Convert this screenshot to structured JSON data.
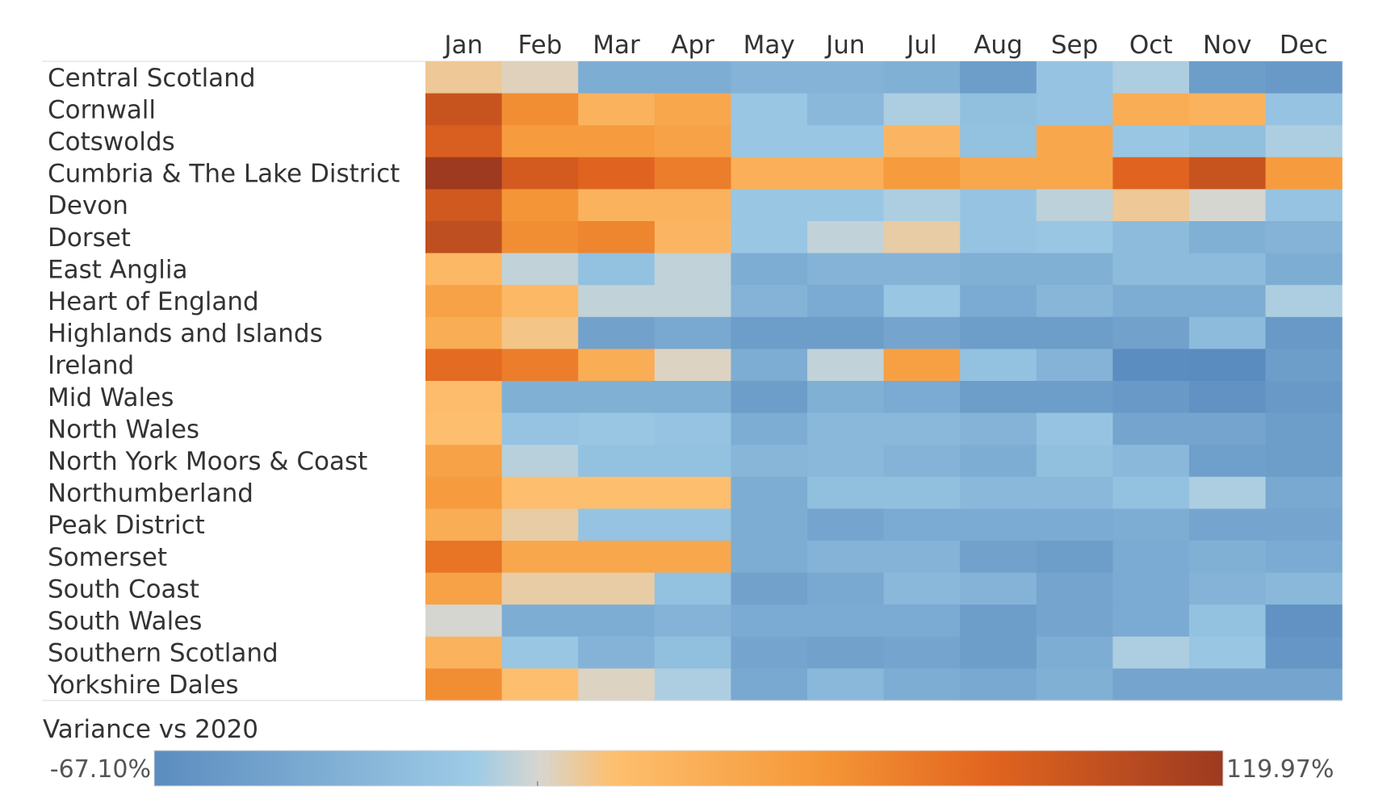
{
  "chart_data": {
    "type": "heatmap",
    "columns": [
      "Jan",
      "Feb",
      "Mar",
      "Apr",
      "May",
      "Jun",
      "Jul",
      "Aug",
      "Sep",
      "Oct",
      "Nov",
      "Dec"
    ],
    "rows": [
      "Central Scotland",
      "Cornwall",
      "Cotswolds",
      "Cumbria & The Lake District",
      "Devon",
      "Dorset",
      "East Anglia",
      "Heart of England",
      "Highlands and Islands",
      "Ireland",
      "Mid Wales",
      "North Wales",
      "North York Moors & Coast",
      "Northumberland",
      "Peak District",
      "Somerset",
      "South Coast",
      "South Wales",
      "Southern Scotland",
      "Yorkshire Dales"
    ],
    "values": [
      [
        8,
        3,
        -38,
        -38,
        -32,
        -32,
        -35,
        -52,
        -18,
        -8,
        -52,
        -55
      ],
      [
        95,
        55,
        25,
        35,
        -15,
        -28,
        -8,
        -22,
        -18,
        30,
        25,
        -18
      ],
      [
        85,
        45,
        45,
        40,
        -15,
        -15,
        22,
        -20,
        35,
        -15,
        -22,
        -8
      ],
      [
        119.97,
        88,
        80,
        65,
        28,
        28,
        45,
        35,
        35,
        80,
        95,
        45
      ],
      [
        90,
        50,
        25,
        25,
        -15,
        -15,
        -8,
        -18,
        -5,
        8,
        0,
        -18
      ],
      [
        100,
        55,
        60,
        22,
        -15,
        -4,
        6,
        -18,
        -15,
        -25,
        -35,
        -32
      ],
      [
        20,
        -4,
        -20,
        -4,
        -38,
        -32,
        -32,
        -35,
        -35,
        -25,
        -25,
        -38
      ],
      [
        40,
        20,
        -4,
        -4,
        -32,
        -40,
        -15,
        -40,
        -30,
        -38,
        -38,
        -8
      ],
      [
        30,
        10,
        -48,
        -42,
        -52,
        -52,
        -45,
        -52,
        -52,
        -48,
        -25,
        -55
      ],
      [
        75,
        65,
        30,
        2,
        -38,
        -4,
        42,
        -20,
        -32,
        -66,
        -67.1,
        -52
      ],
      [
        16,
        -35,
        -35,
        -35,
        -52,
        -35,
        -40,
        -52,
        -52,
        -55,
        -62,
        -55
      ],
      [
        14,
        -18,
        -15,
        -18,
        -38,
        -28,
        -28,
        -32,
        -18,
        -45,
        -45,
        -52
      ],
      [
        40,
        -6,
        -20,
        -20,
        -30,
        -28,
        -32,
        -38,
        -22,
        -28,
        -50,
        -52
      ],
      [
        45,
        14,
        14,
        14,
        -38,
        -22,
        -22,
        -28,
        -28,
        -20,
        -8,
        -42
      ],
      [
        30,
        6,
        -18,
        -18,
        -38,
        -45,
        -40,
        -40,
        -40,
        -38,
        -45,
        -45
      ],
      [
        70,
        35,
        35,
        35,
        -38,
        -32,
        -32,
        -48,
        -52,
        -40,
        -35,
        -40
      ],
      [
        40,
        6,
        6,
        -20,
        -48,
        -42,
        -28,
        -32,
        -45,
        -40,
        -32,
        -28
      ],
      [
        0,
        -38,
        -38,
        -32,
        -40,
        -40,
        -40,
        -52,
        -45,
        -40,
        -20,
        -62
      ],
      [
        25,
        -15,
        -32,
        -22,
        -45,
        -48,
        -45,
        -52,
        -38,
        -8,
        -15,
        -58
      ],
      [
        55,
        14,
        2,
        -8,
        -42,
        -28,
        -38,
        -42,
        -35,
        -45,
        -45,
        -45
      ]
    ],
    "legend": {
      "title": "Variance vs 2020",
      "min_label": "-67.10%",
      "max_label": "119.97%",
      "min": -67.1,
      "max": 119.97,
      "placement": "bottom"
    },
    "colors": {
      "low": "#5b8cbf",
      "low_mid": "#9ecbe6",
      "mid": "#d7d6cf",
      "high_mid": "#fdbf6f",
      "high_a": "#f59838",
      "high_b": "#e2651f",
      "high": "#9d3a20",
      "grid_line": "#d9d9d9"
    }
  }
}
